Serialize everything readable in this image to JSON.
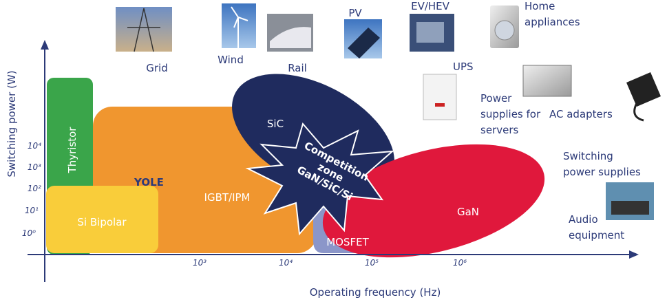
{
  "axes": {
    "y_title": "Switching power (W)",
    "x_title": "Operating frequency (Hz)",
    "y_ticks": [
      "10⁴",
      "10³",
      "10²",
      "10¹",
      "10⁰"
    ],
    "x_ticks": [
      "10³",
      "10⁴",
      "10⁵",
      "10⁶"
    ]
  },
  "regions": {
    "thyristor": "Thyristor",
    "si_bipolar": "Si Bipolar",
    "igbt": "IGBT/IPM",
    "sic": "SiC",
    "gan": "GaN",
    "mosfet": "MOSFET"
  },
  "competition": [
    "Competition",
    "zone",
    "GaN/SiC/Si"
  ],
  "logo": "YOLE",
  "applications": {
    "grid": [
      "Grid"
    ],
    "wind": [
      "Wind"
    ],
    "rail": [
      "Rail"
    ],
    "pv": [
      "PV"
    ],
    "ev": [
      "EV/HEV"
    ],
    "home": [
      "Home",
      "appliances"
    ],
    "ups": [
      "UPS"
    ],
    "servers": [
      "Power",
      "supplies for",
      "servers"
    ],
    "ac": [
      "AC adapters"
    ],
    "smps": [
      "Switching",
      "power supplies"
    ],
    "audio": [
      "Audio",
      "equipment"
    ]
  }
}
